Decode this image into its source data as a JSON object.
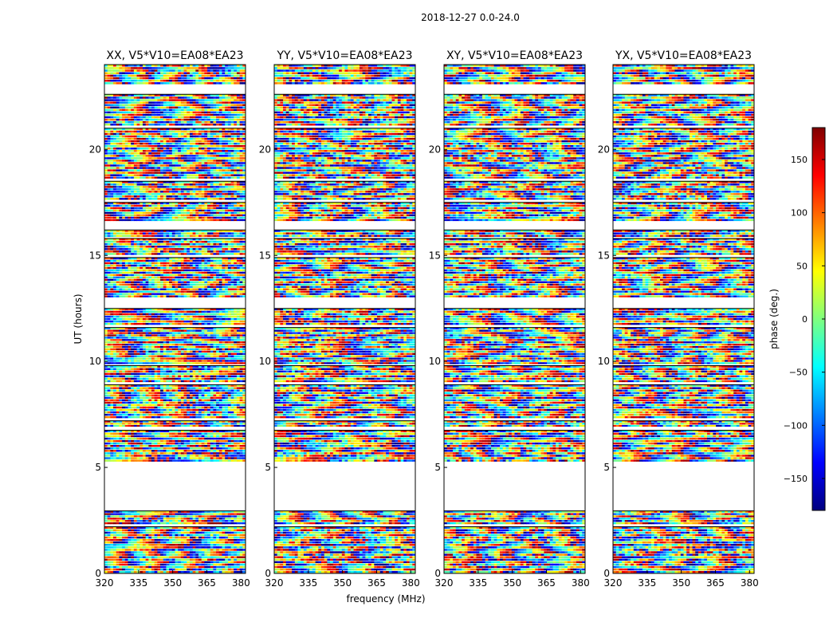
{
  "chart_data": {
    "type": "heatmap",
    "suptitle": "2018-12-27 0.0-24.0",
    "xlabel": "frequency (MHz)",
    "ylabel": "UT (hours)",
    "xlim": [
      320,
      382
    ],
    "ylim": [
      0,
      24
    ],
    "xticks": [
      "320",
      "335",
      "350",
      "365",
      "380"
    ],
    "xtick_values": [
      320,
      335,
      350,
      365,
      380
    ],
    "yticks": [
      "0",
      "5",
      "10",
      "15",
      "20"
    ],
    "ytick_values": [
      0,
      5,
      10,
      15,
      20
    ],
    "panels": [
      {
        "title": "XX, V5*V10=EA08*EA23"
      },
      {
        "title": "YY, V5*V10=EA08*EA23"
      },
      {
        "title": "XY, V5*V10=EA08*EA23"
      },
      {
        "title": "YX, V5*V10=EA08*EA23"
      }
    ],
    "colorbar": {
      "label": "phase (deg.)",
      "range": [
        -180,
        180
      ],
      "ticks": [
        "150",
        "100",
        "50",
        "0",
        "−50",
        "−100",
        "−150"
      ],
      "tick_values": [
        150,
        100,
        50,
        0,
        -50,
        -100,
        -150
      ],
      "colormap": "jet"
    },
    "data_blocks_ut": [
      [
        0.0,
        2.2
      ],
      [
        2.3,
        2.95
      ],
      [
        5.25,
        6.75
      ],
      [
        6.9,
        7.2
      ],
      [
        7.3,
        8.9
      ],
      [
        9.0,
        9.8
      ],
      [
        9.85,
        11.6
      ],
      [
        11.7,
        12.5
      ],
      [
        13.0,
        14.9
      ],
      [
        15.0,
        15.8
      ],
      [
        15.85,
        16.2
      ],
      [
        16.6,
        17.5
      ],
      [
        17.6,
        18.5
      ],
      [
        18.6,
        21.0
      ],
      [
        21.1,
        22.6
      ],
      [
        23.05,
        24.0
      ]
    ],
    "gap_ut": [
      [
        2.95,
        5.25
      ]
    ]
  }
}
